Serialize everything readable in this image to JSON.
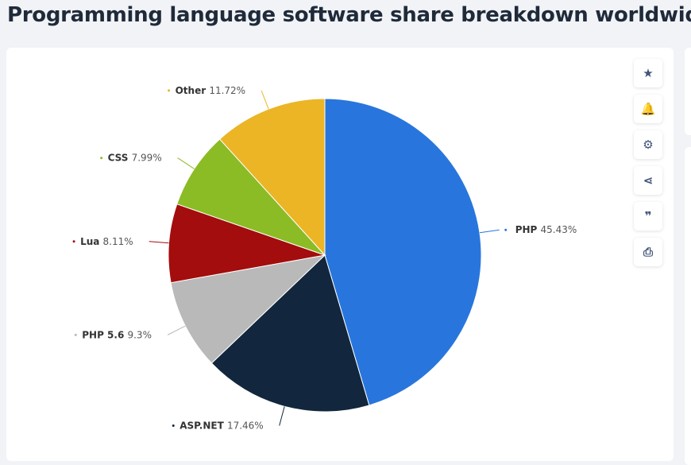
{
  "title": "Programming language software share breakdown worldwide",
  "toolbar": [
    {
      "icon": "star-icon",
      "glyph": "★"
    },
    {
      "icon": "bell-icon",
      "glyph": "🔔"
    },
    {
      "icon": "gear-icon",
      "glyph": "⚙"
    },
    {
      "icon": "share-icon",
      "glyph": "⋖"
    },
    {
      "icon": "quote-icon",
      "glyph": "❞"
    },
    {
      "icon": "print-icon",
      "glyph": "⎙"
    }
  ],
  "chart_data": {
    "type": "pie",
    "title": "Programming language software share breakdown worldwide",
    "unit": "%",
    "slices": [
      {
        "label": "PHP",
        "value": 45.43,
        "display": "45.43%",
        "color": "#2876dd"
      },
      {
        "label": "ASP.NET",
        "value": 17.46,
        "display": "17.46%",
        "color": "#12273d"
      },
      {
        "label": "PHP 5.6",
        "value": 9.3,
        "display": "9.3%",
        "color": "#b9b9b9"
      },
      {
        "label": "Lua",
        "value": 8.11,
        "display": "8.11%",
        "color": "#a30d0d"
      },
      {
        "label": "CSS",
        "value": 7.99,
        "display": "7.99%",
        "color": "#8bbc25"
      },
      {
        "label": "Other",
        "value": 11.72,
        "display": "11.72%",
        "color": "#ebb526"
      }
    ],
    "legend": "none"
  }
}
